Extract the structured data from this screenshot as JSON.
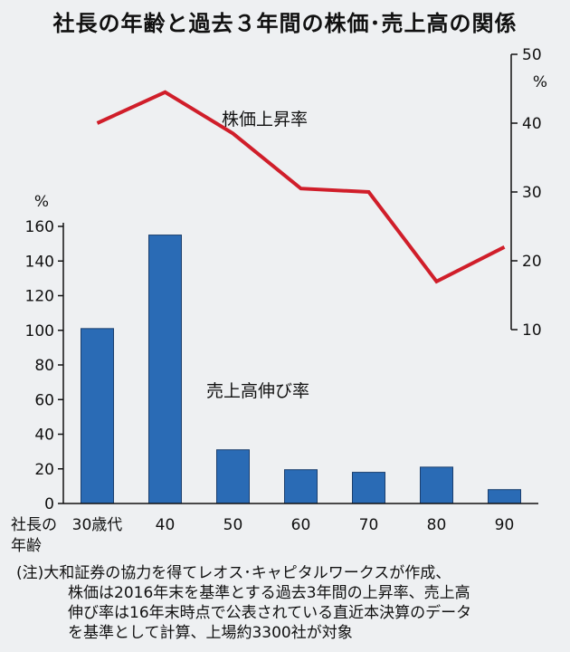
{
  "title": "社長の年齢と過去３年間の株価･売上高の関係",
  "chart_data": {
    "type": "bar",
    "title": "社長の年齢と過去３年間の株価･売上高の関係",
    "xlabel_lines": [
      "社長の",
      "年齢"
    ],
    "categories": [
      "30歳代",
      "40",
      "50",
      "60",
      "70",
      "80",
      "90"
    ],
    "series": [
      {
        "name": "売上高伸び率",
        "type": "bar",
        "axis": "left",
        "color": "#2a6bb5",
        "values": [
          101,
          155,
          31,
          19.5,
          18,
          21,
          8
        ]
      },
      {
        "name": "株価上昇率",
        "type": "line",
        "axis": "right",
        "color": "#d01e2a",
        "values": [
          40,
          44.5,
          38.5,
          30.5,
          30,
          17,
          22
        ]
      }
    ],
    "left_axis": {
      "unit": "%",
      "ylim": [
        0,
        160
      ],
      "ticks": [
        0,
        20,
        40,
        60,
        80,
        100,
        120,
        140,
        160
      ]
    },
    "right_axis": {
      "unit": "%",
      "ylim": [
        10,
        50
      ],
      "ticks": [
        10,
        20,
        30,
        40,
        50
      ]
    },
    "grid": false
  },
  "note": [
    "(注)大和証券の協力を得てレオス･キャピタルワークスが作成、",
    "株価は2016年末を基準とする過去3年間の上昇率、売上高",
    "伸び率は16年末時点で公表されている直近本決算のデータ",
    "を基準として計算、上場約3300社が対象"
  ]
}
